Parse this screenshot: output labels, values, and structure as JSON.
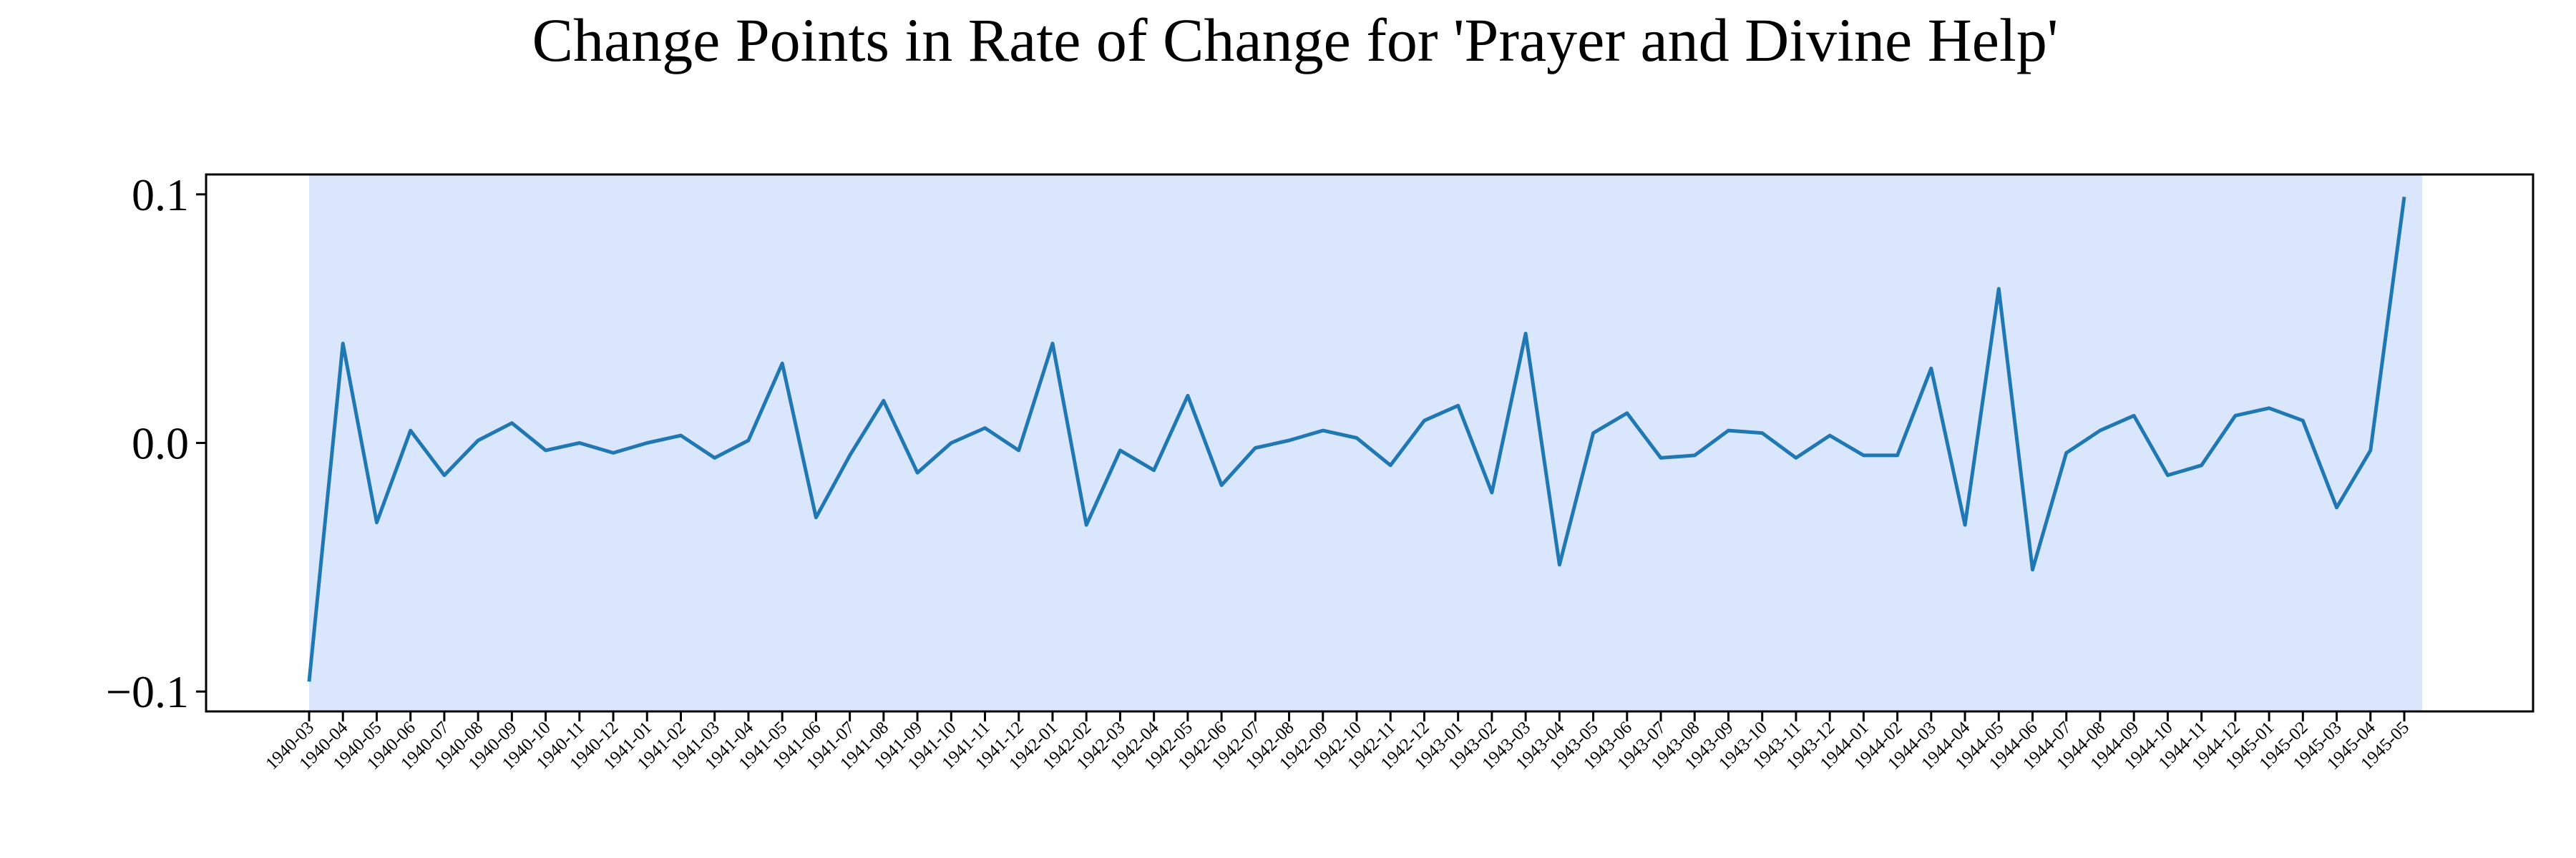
{
  "chart_data": {
    "type": "line",
    "title": "Change Points in Rate of Change for 'Prayer and Divine Help'",
    "xlabel": "",
    "ylabel": "",
    "ylim": [
      -0.108,
      0.108
    ],
    "yticks": [
      0.1,
      0.0,
      -0.1
    ],
    "ytick_labels": [
      "0.1",
      "0.0",
      "−0.1"
    ],
    "grid": false,
    "legend": "none",
    "line_color": "#1f77b4",
    "highlight_span_color": "#dae6fb",
    "highlight_span": {
      "start": "1940-03",
      "end": "1945-05"
    },
    "categories": [
      "1940-03",
      "1940-04",
      "1940-05",
      "1940-06",
      "1940-07",
      "1940-08",
      "1940-09",
      "1940-10",
      "1940-11",
      "1940-12",
      "1941-01",
      "1941-02",
      "1941-03",
      "1941-04",
      "1941-05",
      "1941-06",
      "1941-07",
      "1941-08",
      "1941-09",
      "1941-10",
      "1941-11",
      "1941-12",
      "1942-01",
      "1942-02",
      "1942-03",
      "1942-04",
      "1942-05",
      "1942-06",
      "1942-07",
      "1942-08",
      "1942-09",
      "1942-10",
      "1942-11",
      "1942-12",
      "1943-01",
      "1943-02",
      "1943-03",
      "1943-04",
      "1943-05",
      "1943-06",
      "1943-07",
      "1943-08",
      "1943-09",
      "1943-10",
      "1943-11",
      "1943-12",
      "1944-01",
      "1944-02",
      "1944-03",
      "1944-04",
      "1944-05",
      "1944-06",
      "1944-07",
      "1944-08",
      "1944-09",
      "1944-10",
      "1944-11",
      "1944-12",
      "1945-01",
      "1945-02",
      "1945-03",
      "1945-04",
      "1945-05"
    ],
    "values": [
      -0.096,
      0.04,
      -0.032,
      0.005,
      -0.013,
      0.001,
      0.008,
      -0.003,
      0.0,
      -0.004,
      0.0,
      0.003,
      -0.006,
      0.001,
      0.032,
      -0.03,
      -0.005,
      0.017,
      -0.012,
      0.0,
      0.006,
      -0.003,
      0.04,
      -0.033,
      -0.003,
      -0.011,
      0.019,
      -0.017,
      -0.002,
      0.001,
      0.005,
      0.002,
      -0.009,
      0.009,
      0.015,
      -0.02,
      0.044,
      -0.049,
      0.004,
      0.012,
      -0.006,
      -0.005,
      0.005,
      0.004,
      -0.006,
      0.003,
      -0.005,
      -0.005,
      0.03,
      -0.033,
      0.062,
      -0.051,
      -0.004,
      0.005,
      0.011,
      -0.013,
      -0.009,
      0.011,
      0.014,
      0.009,
      -0.026,
      -0.003,
      0.099
    ]
  }
}
